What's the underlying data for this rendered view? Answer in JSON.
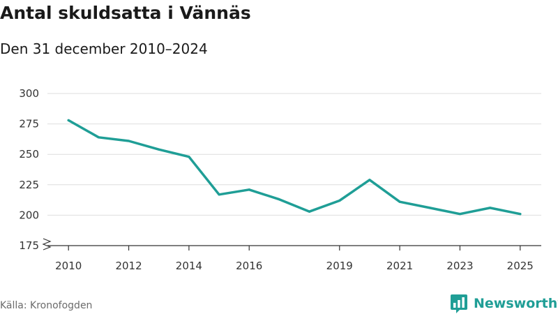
{
  "header": {
    "title": "Antal skuldsatta i Vännäs",
    "subtitle": "Den 31 december 2010–2024"
  },
  "footer": {
    "source": "Källa: Kronofogden",
    "brand": "Newsworthy",
    "brand_icon": "bar-chart-speech-bubble-icon",
    "brand_color": "#1f9e96"
  },
  "chart_data": {
    "type": "line",
    "title": "Antal skuldsatta i Vännäs",
    "subtitle": "Den 31 december 2010–2024",
    "xlabel": "",
    "ylabel": "",
    "x": [
      2010,
      2011,
      2012,
      2013,
      2014,
      2015,
      2016,
      2017,
      2018,
      2019,
      2020,
      2021,
      2022,
      2023,
      2024,
      2025
    ],
    "series": [
      {
        "values": [
          278,
          264,
          261,
          254,
          248,
          217,
          221,
          213,
          203,
          212,
          229,
          211,
          206,
          201,
          206,
          201
        ],
        "color": "#1f9e96"
      }
    ],
    "xticks": [
      "2010",
      "2012",
      "2014",
      "2016",
      "2019",
      "2021",
      "2023",
      "2025"
    ],
    "xtick_values": [
      2010,
      2012,
      2014,
      2016,
      2019,
      2021,
      2023,
      2025
    ],
    "yticks": [
      "300",
      "275",
      "250",
      "225",
      "200",
      "175"
    ],
    "ytick_values": [
      300,
      275,
      250,
      225,
      200,
      175
    ],
    "ylim": [
      175,
      300
    ],
    "xlim": [
      2009.3,
      2025.7
    ],
    "y_axis_break": true,
    "grid": "horizontal"
  }
}
